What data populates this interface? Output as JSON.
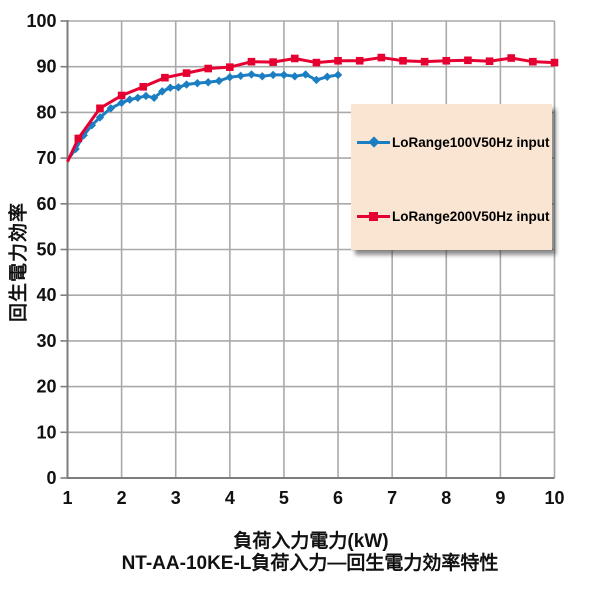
{
  "page": {
    "background": "#ffffff"
  },
  "chart_data": {
    "type": "line",
    "title": "NT-AA-10KE-L負荷入力―回生電力効率特性",
    "xlabel": "負荷入力電力(kW)",
    "ylabel": "回生電力効率",
    "xlim": [
      1,
      10
    ],
    "ylim": [
      0,
      100
    ],
    "xticks": [
      1,
      2,
      3,
      4,
      5,
      6,
      7,
      8,
      9,
      10
    ],
    "yticks": [
      0,
      10,
      20,
      30,
      40,
      50,
      60,
      70,
      80,
      90,
      100
    ],
    "grid": true,
    "legend": {
      "position": "upper-right-inside",
      "background": "#f9e5d1"
    },
    "colors": {
      "grid": "#a9a9a9",
      "axis": "#7d7d7d",
      "tick_text": "#111111",
      "blue_series": "#1b7ec2",
      "red_series": "#e60032"
    },
    "series": [
      {
        "name": "LoRange100V50Hz input",
        "color": "#1b7ec2",
        "marker": "diamond",
        "points": [
          [
            1.0,
            69.5
          ],
          [
            1.15,
            72.0
          ],
          [
            1.3,
            75.0
          ],
          [
            1.45,
            77.2
          ],
          [
            1.6,
            78.9
          ],
          [
            1.8,
            80.9
          ],
          [
            2.0,
            82.1
          ],
          [
            2.15,
            82.8
          ],
          [
            2.3,
            83.2
          ],
          [
            2.45,
            83.6
          ],
          [
            2.6,
            83.2
          ],
          [
            2.75,
            84.6
          ],
          [
            2.9,
            85.4
          ],
          [
            3.05,
            85.5
          ],
          [
            3.2,
            86.1
          ],
          [
            3.4,
            86.4
          ],
          [
            3.6,
            86.6
          ],
          [
            3.8,
            86.9
          ],
          [
            4.0,
            87.7
          ],
          [
            4.2,
            88.0
          ],
          [
            4.4,
            88.3
          ],
          [
            4.6,
            87.9
          ],
          [
            4.8,
            88.2
          ],
          [
            5.0,
            88.2
          ],
          [
            5.2,
            87.9
          ],
          [
            5.4,
            88.3
          ],
          [
            5.6,
            87.1
          ],
          [
            5.8,
            87.8
          ],
          [
            6.0,
            88.2
          ]
        ]
      },
      {
        "name": "LoRange200V50Hz input",
        "color": "#e60032",
        "marker": "square",
        "points": [
          [
            1.0,
            69.2
          ],
          [
            1.2,
            74.3
          ],
          [
            1.6,
            80.9
          ],
          [
            2.0,
            83.7
          ],
          [
            2.4,
            85.6
          ],
          [
            2.8,
            87.6
          ],
          [
            3.2,
            88.6
          ],
          [
            3.6,
            89.6
          ],
          [
            4.0,
            89.9
          ],
          [
            4.4,
            91.1
          ],
          [
            4.8,
            91.0
          ],
          [
            5.2,
            91.8
          ],
          [
            5.6,
            90.9
          ],
          [
            6.0,
            91.3
          ],
          [
            6.4,
            91.3
          ],
          [
            6.8,
            92.0
          ],
          [
            7.2,
            91.3
          ],
          [
            7.6,
            91.1
          ],
          [
            8.0,
            91.3
          ],
          [
            8.4,
            91.4
          ],
          [
            8.8,
            91.2
          ],
          [
            9.2,
            91.9
          ],
          [
            9.6,
            91.1
          ],
          [
            10.0,
            90.9
          ]
        ]
      }
    ]
  }
}
